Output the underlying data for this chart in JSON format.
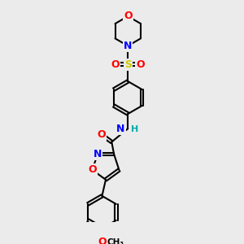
{
  "bg_color": "#ebebeb",
  "bond_color": "#000000",
  "atom_colors": {
    "O": "#ff0000",
    "N": "#0000ff",
    "S": "#cccc00",
    "C": "#000000",
    "H": "#00aaaa"
  },
  "title": "",
  "figsize": [
    3.0,
    3.0
  ],
  "dpi": 100
}
